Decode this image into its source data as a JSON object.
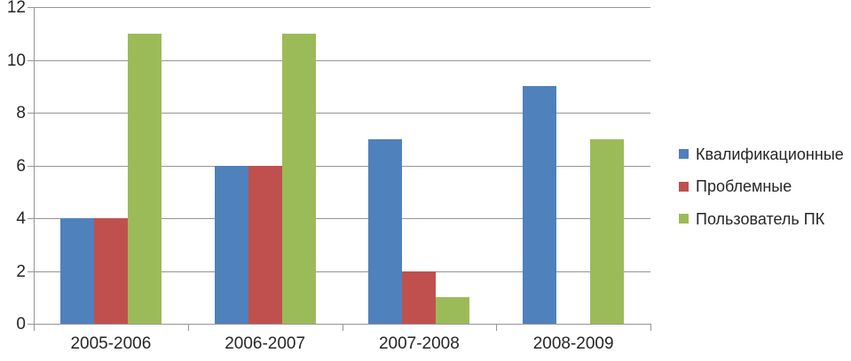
{
  "chart_data": {
    "type": "bar",
    "categories": [
      "2005-2006",
      "2006-2007",
      "2007-2008",
      "2008-2009"
    ],
    "series": [
      {
        "name": "Квалификационные",
        "color": "#4F81BD",
        "values": [
          4,
          6,
          7,
          9
        ]
      },
      {
        "name": "Проблемные",
        "color": "#C0504D",
        "values": [
          4,
          6,
          2,
          0
        ]
      },
      {
        "name": "Пользователь ПК",
        "color": "#9BBB59",
        "values": [
          11,
          11,
          1,
          7
        ]
      }
    ],
    "title": "",
    "xlabel": "",
    "ylabel": "",
    "ylim": [
      0,
      12
    ],
    "ytick_step": 2,
    "yticks": [
      "0",
      "2",
      "4",
      "6",
      "8",
      "10",
      "12"
    ],
    "grid": true,
    "legend_position": "right"
  },
  "colors": {
    "background": "#FFFFFF",
    "gridline": "#959595",
    "axis": "#959595",
    "text": "#262626"
  }
}
